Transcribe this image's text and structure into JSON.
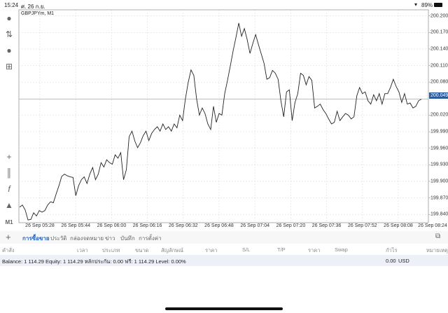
{
  "status": {
    "time": "15:24",
    "date": "ศ. 26 ก.ย.",
    "battery": "89%"
  },
  "chart": {
    "symbol_label": "GBPJPYm, M1",
    "timeframe": "M1",
    "current_price": "200.049"
  },
  "toolbar": [
    {
      "icon": "account-icon"
    },
    {
      "icon": "trade-arrows-icon"
    },
    {
      "icon": "chat-icon"
    },
    {
      "icon": "new-order-icon"
    },
    {
      "icon": "crosshair-icon"
    },
    {
      "icon": "candles-icon"
    },
    {
      "icon": "indicators-icon"
    },
    {
      "icon": "objects-icon"
    }
  ],
  "chart_data": {
    "type": "line",
    "title": "GBPJPYm, M1",
    "x_ticks": [
      "26 Sep 05:28",
      "26 Sep 05:44",
      "26 Sep 06:00",
      "26 Sep 06:16",
      "26 Sep 06:32",
      "26 Sep 06:48",
      "26 Sep 07:04",
      "26 Sep 07:20",
      "26 Sep 07:36",
      "26 Sep 07:52",
      "26 Sep 08:08",
      "26 Sep 08:24"
    ],
    "y_ticks": [
      "200.200",
      "200.170",
      "200.140",
      "200.110",
      "200.080",
      "200.020",
      "199.990",
      "199.960",
      "199.930",
      "199.900",
      "199.870",
      "199.840"
    ],
    "ylim": [
      199.825,
      200.211
    ],
    "grid": true,
    "values": [
      199.853,
      199.857,
      199.848,
      199.83,
      199.831,
      199.843,
      199.837,
      199.847,
      199.844,
      199.847,
      199.857,
      199.863,
      199.861,
      199.877,
      199.892,
      199.909,
      199.913,
      199.91,
      199.908,
      199.907,
      199.874,
      199.892,
      199.903,
      199.908,
      199.896,
      199.913,
      199.925,
      199.903,
      199.913,
      199.934,
      199.926,
      199.939,
      199.934,
      199.931,
      199.948,
      199.942,
      199.952,
      199.903,
      199.921,
      199.981,
      199.991,
      199.973,
      199.961,
      199.97,
      199.983,
      199.991,
      199.974,
      199.987,
      199.994,
      199.999,
      199.991,
      200.004,
      199.994,
      199.999,
      199.991,
      200.004,
      199.997,
      200.02,
      200.01,
      200.049,
      200.079,
      200.102,
      200.092,
      200.049,
      200.02,
      200.033,
      200.023,
      200.004,
      199.994,
      200.036,
      200.007,
      200.023,
      200.02,
      200.059,
      200.083,
      200.109,
      200.137,
      200.161,
      200.187,
      200.163,
      200.177,
      200.157,
      200.132,
      200.15,
      200.166,
      200.148,
      200.131,
      200.114,
      200.085,
      200.088,
      200.101,
      200.096,
      200.085,
      200.046,
      200.017,
      200.062,
      200.066,
      200.01,
      200.043,
      200.059,
      200.096,
      200.092,
      200.075,
      200.09,
      200.083,
      200.033,
      200.036,
      200.04,
      200.03,
      200.023,
      200.013,
      200.004,
      200.007,
      200.027,
      200.01,
      200.017,
      200.023,
      200.02,
      200.013,
      200.017,
      200.055,
      200.07,
      200.059,
      200.062,
      200.046,
      200.04,
      200.057,
      200.046,
      200.059,
      200.04,
      200.059,
      200.059,
      200.07,
      200.085,
      200.072,
      200.062,
      200.043,
      200.059,
      200.04,
      200.042,
      200.033,
      200.036,
      200.046,
      200.049
    ],
    "current_line": 200.049,
    "line_color": "#222222",
    "current_color": "#2c5d9a"
  },
  "tabs": [
    "การซื้อขาย",
    "ประวัติ",
    "กล่องจดหมาย",
    "ข่าว",
    "บันทึก",
    "การตั้งค่า"
  ],
  "columns": [
    "คำสั่ง",
    "เวลา",
    "ประเภท",
    "ขนาด",
    "สัญลักษณ์",
    "ราคา",
    "S/L",
    "T/P",
    "ราคา",
    "Swap",
    "กำไร",
    "หมายเหตุ"
  ],
  "balance": {
    "text": "Balance: 1 114.29 Equity: 1 114.29 หลักประกัน: 0.00 ฟรี: 1 114.29 Level: 0.00%",
    "profit": "0.00",
    "currency": "USD"
  }
}
